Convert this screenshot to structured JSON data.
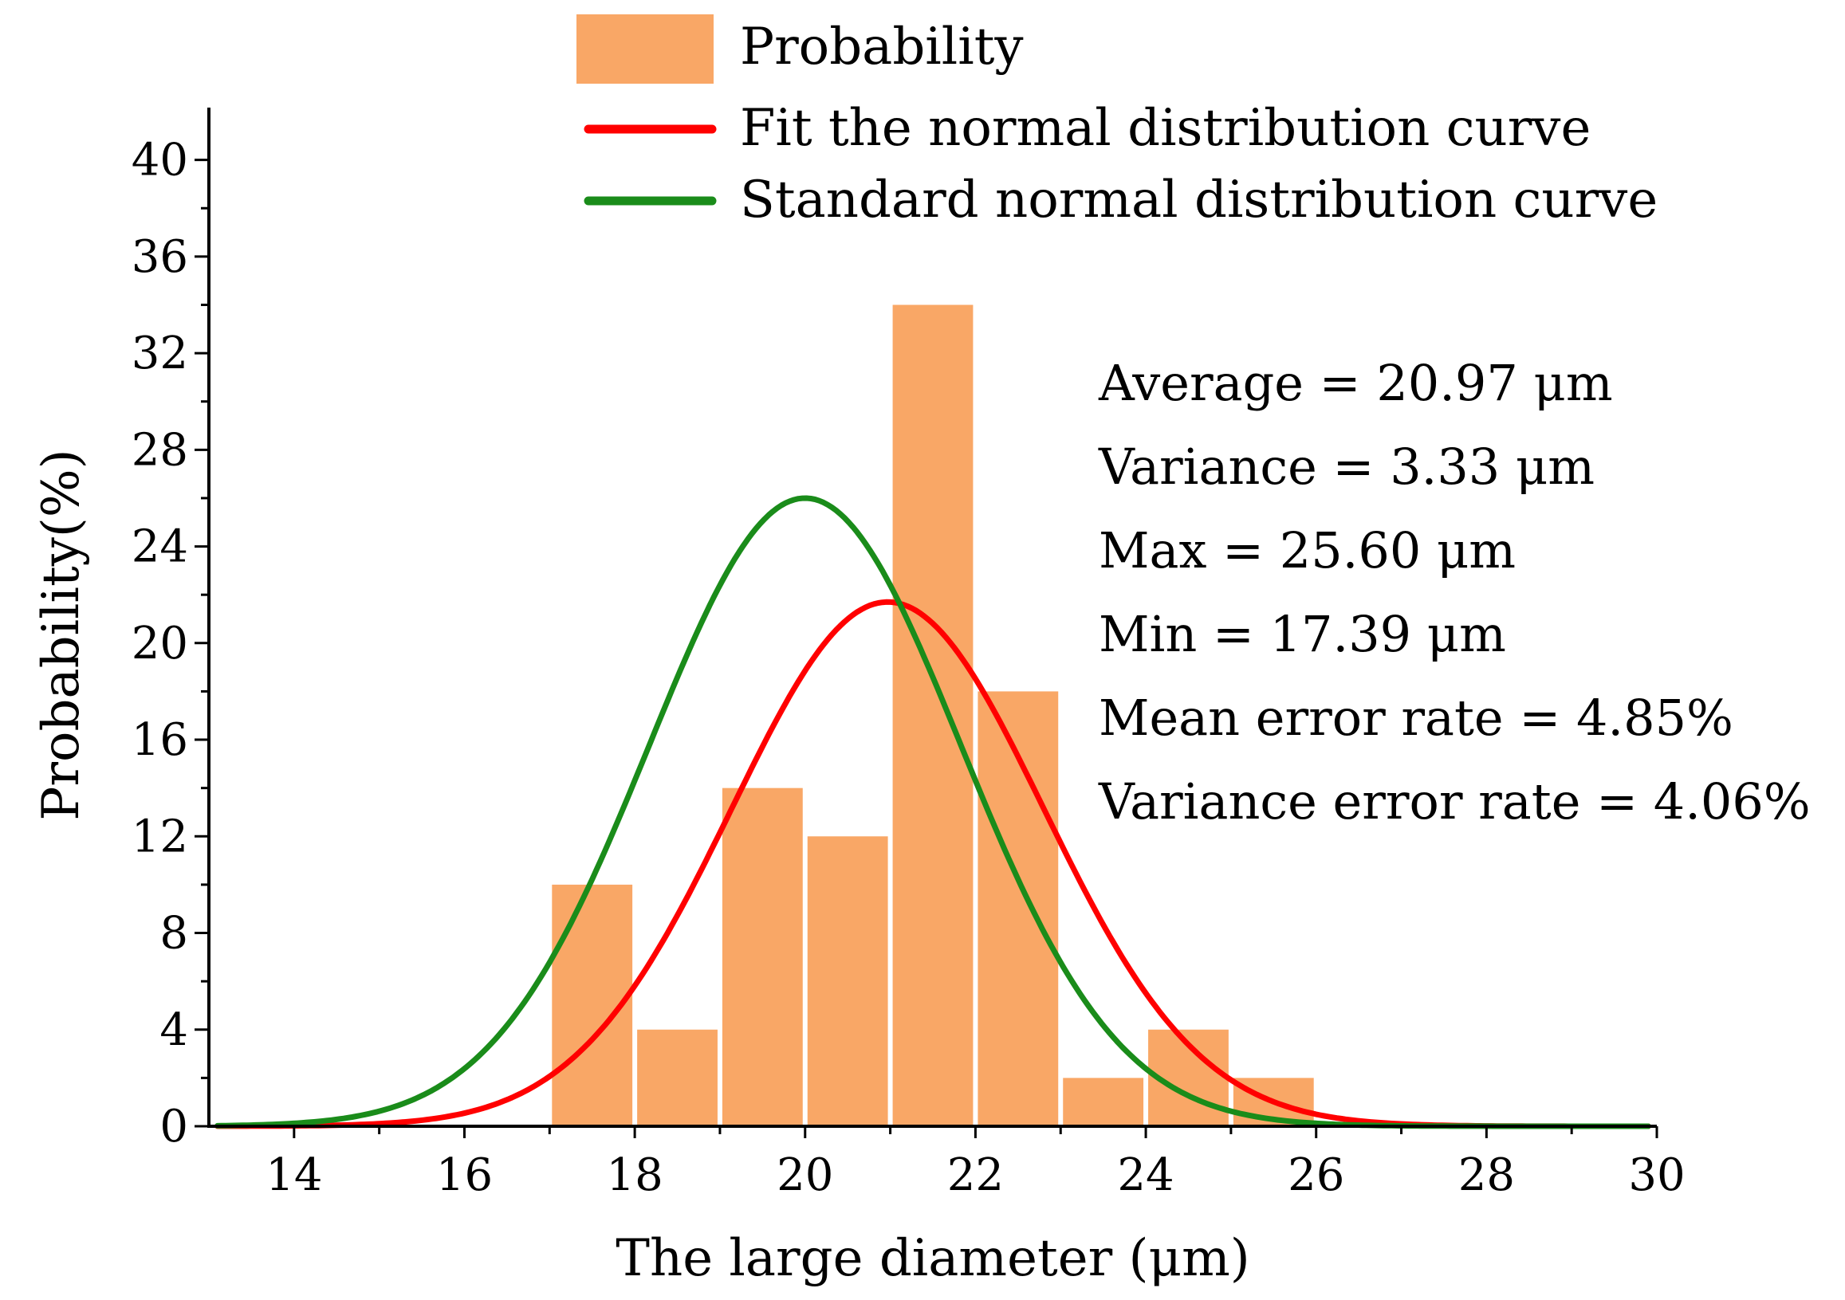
{
  "chart_data": {
    "type": "bar",
    "title": "",
    "xlabel": "The large diameter (μm)",
    "ylabel": "Probability(%)",
    "xlim": [
      13,
      30
    ],
    "ylim": [
      0,
      42
    ],
    "xticks": [
      14,
      16,
      18,
      20,
      22,
      24,
      26,
      28,
      30
    ],
    "yticks": [
      0,
      4,
      8,
      12,
      16,
      20,
      24,
      28,
      32,
      36,
      40
    ],
    "bin_width": 1,
    "bins": [
      {
        "x0": 17,
        "x1": 18,
        "value": 10
      },
      {
        "x0": 18,
        "x1": 19,
        "value": 4
      },
      {
        "x0": 19,
        "x1": 20,
        "value": 14
      },
      {
        "x0": 20,
        "x1": 21,
        "value": 12
      },
      {
        "x0": 21,
        "x1": 22,
        "value": 34
      },
      {
        "x0": 22,
        "x1": 23,
        "value": 18
      },
      {
        "x0": 23,
        "x1": 24,
        "value": 2
      },
      {
        "x0": 24,
        "x1": 25,
        "value": 4
      },
      {
        "x0": 25,
        "x1": 26,
        "value": 2
      }
    ],
    "series": [
      {
        "name": "Probability",
        "kind": "histogram",
        "color": "#F9A766"
      },
      {
        "name": "Fit the normal distribution curve",
        "kind": "curve",
        "color": "#FF0000",
        "mean": 20.97,
        "peak": 21.7
      },
      {
        "name": "Standard normal distribution curve",
        "kind": "curve",
        "color": "#1A8C1A",
        "mean": 20.0,
        "peak": 26.0
      }
    ],
    "curve_sigma": 1.83,
    "legend_position": "top",
    "annotations": [
      "Average = 20.97 μm",
      "Variance = 3.33 μm",
      "Max = 25.60 μm",
      "Min = 17.39 μm",
      "Mean error rate = 4.85%",
      "Variance error rate = 4.06%"
    ]
  }
}
